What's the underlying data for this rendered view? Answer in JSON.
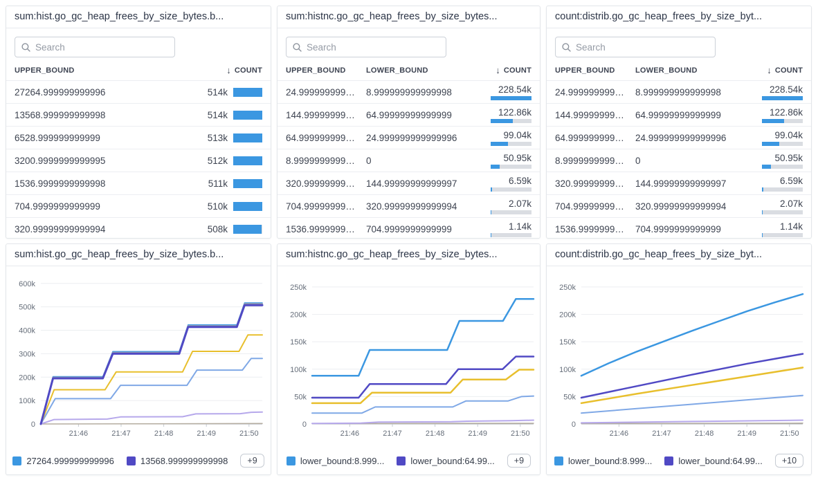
{
  "search_placeholder": "Search",
  "sort_arrow": "↓",
  "colors": {
    "bar_fill": "#3b97e1",
    "bar_track": "#dadde2",
    "blue": "#3b97e1",
    "indigo": "#5049c4",
    "yellow": "#e8bf2d",
    "steel_blue": "#7fa8e6",
    "lavender": "#b6a8eb",
    "gray": "#99a1ad",
    "tan": "#b5ada0",
    "grid": "#eceef1",
    "baseline": "#a9afb8",
    "axis_text": "#656d79"
  },
  "tables": [
    {
      "title": "sum:hist.go_gc_heap_frees_by_size_bytes.b...",
      "columns": [
        "UPPER_BOUND",
        "COUNT"
      ],
      "rows": [
        {
          "upper_bound": "27264.999999999996",
          "count": "514k",
          "fill": 100
        },
        {
          "upper_bound": "13568.999999999998",
          "count": "514k",
          "fill": 100
        },
        {
          "upper_bound": "6528.999999999999",
          "count": "513k",
          "fill": 99.8
        },
        {
          "upper_bound": "3200.9999999999995",
          "count": "512k",
          "fill": 99.6
        },
        {
          "upper_bound": "1536.9999999999998",
          "count": "511k",
          "fill": 99.4
        },
        {
          "upper_bound": "704.9999999999999",
          "count": "510k",
          "fill": 99.2
        },
        {
          "upper_bound": "320.99999999999994",
          "count": "508k",
          "fill": 98.8
        }
      ]
    },
    {
      "title": "sum:histnc.go_gc_heap_frees_by_size_bytes...",
      "columns": [
        "UPPER_BOUND",
        "LOWER_BOUND",
        "COUNT"
      ],
      "rows": [
        {
          "upper_bound": "24.999999999999996",
          "lower_bound": "8.999999999999998",
          "count": "228.54k",
          "fill": 100
        },
        {
          "upper_bound": "144.99999999999997",
          "lower_bound": "64.99999999999999",
          "count": "122.86k",
          "fill": 54
        },
        {
          "upper_bound": "64.99999999999999",
          "lower_bound": "24.999999999999996",
          "count": "99.04k",
          "fill": 43
        },
        {
          "upper_bound": "8.999999999999998",
          "lower_bound": "0",
          "count": "50.95k",
          "fill": 22
        },
        {
          "upper_bound": "320.99999999999994",
          "lower_bound": "144.99999999999997",
          "count": "6.59k",
          "fill": 3
        },
        {
          "upper_bound": "704.9999999999999",
          "lower_bound": "320.99999999999994",
          "count": "2.07k",
          "fill": 1.2
        },
        {
          "upper_bound": "1536.9999999999998",
          "lower_bound": "704.9999999999999",
          "count": "1.14k",
          "fill": 0.7
        }
      ]
    },
    {
      "title": "count:distrib.go_gc_heap_frees_by_size_byt...",
      "columns": [
        "UPPER_BOUND",
        "LOWER_BOUND",
        "COUNT"
      ],
      "rows": [
        {
          "upper_bound": "24.999999999999996",
          "lower_bound": "8.999999999999998",
          "count": "228.54k",
          "fill": 100
        },
        {
          "upper_bound": "144.99999999999997",
          "lower_bound": "64.99999999999999",
          "count": "122.86k",
          "fill": 54
        },
        {
          "upper_bound": "64.99999999999999",
          "lower_bound": "24.999999999999996",
          "count": "99.04k",
          "fill": 43
        },
        {
          "upper_bound": "8.999999999999998",
          "lower_bound": "0",
          "count": "50.95k",
          "fill": 22
        },
        {
          "upper_bound": "320.99999999999994",
          "lower_bound": "144.99999999999997",
          "count": "6.59k",
          "fill": 3
        },
        {
          "upper_bound": "704.9999999999999",
          "lower_bound": "320.99999999999994",
          "count": "2.07k",
          "fill": 1.2
        },
        {
          "upper_bound": "1536.9999999999998",
          "lower_bound": "704.9999999999999",
          "count": "1.14k",
          "fill": 0.7
        }
      ]
    }
  ],
  "chart_data": [
    {
      "type": "line",
      "title": "sum:hist.go_gc_heap_frees_by_size_bytes.b...",
      "xlabel": "",
      "ylabel": "",
      "x_ticks": [
        "21:46",
        "21:47",
        "21:48",
        "21:49",
        "21:50"
      ],
      "x_tick_pos": [
        0.17,
        0.3625,
        0.555,
        0.7475,
        0.94
      ],
      "y_tick_vals": [
        0,
        100,
        200,
        300,
        400,
        500,
        600
      ],
      "y_tick_labels": [
        "0",
        "100k",
        "200k",
        "300k",
        "400k",
        "500k",
        "600k"
      ],
      "y_unit": "k",
      "ylim": [
        0,
        620
      ],
      "grid": "horizontal",
      "legend_position": "bottom",
      "legend": [
        {
          "label": "27264.999999999996",
          "color": "#3b97e1"
        },
        {
          "label": "13568.999999999998",
          "color": "#5049c4"
        }
      ],
      "legend_more": "+9",
      "series": [
        {
          "name": "series-baseline",
          "color": "#b5ada0",
          "width": 1.5,
          "points": [
            [
              0,
              0
            ],
            [
              1,
              2
            ]
          ]
        },
        {
          "name": "series-lavender",
          "color": "#b6a8eb",
          "width": 2,
          "points": [
            [
              0,
              0
            ],
            [
              0.06,
              19
            ],
            [
              0.3,
              21
            ],
            [
              0.36,
              30
            ],
            [
              0.64,
              31
            ],
            [
              0.7,
              43
            ],
            [
              0.9,
              44
            ],
            [
              0.95,
              50
            ],
            [
              1,
              51
            ]
          ]
        },
        {
          "name": "series-light-blue",
          "color": "#7fa8e6",
          "width": 2,
          "points": [
            [
              0,
              0
            ],
            [
              0.065,
              108
            ],
            [
              0.315,
              108
            ],
            [
              0.36,
              165
            ],
            [
              0.66,
              165
            ],
            [
              0.705,
              230
            ],
            [
              0.91,
              230
            ],
            [
              0.95,
              280
            ],
            [
              1,
              280
            ]
          ]
        },
        {
          "name": "series-yellow",
          "color": "#e8bf2d",
          "width": 2,
          "points": [
            [
              0,
              0
            ],
            [
              0.06,
              146
            ],
            [
              0.29,
              146
            ],
            [
              0.34,
              222
            ],
            [
              0.64,
              222
            ],
            [
              0.685,
              310
            ],
            [
              0.895,
              310
            ],
            [
              0.935,
              380
            ],
            [
              1,
              380
            ]
          ]
        },
        {
          "name": "27264.999999999996",
          "color": "#3b97e1",
          "width": 1.6,
          "points": [
            [
              0,
              0
            ],
            [
              0.055,
              202
            ],
            [
              0.28,
              202
            ],
            [
              0.325,
              309
            ],
            [
              0.625,
              309
            ],
            [
              0.665,
              423
            ],
            [
              0.885,
              423
            ],
            [
              0.92,
              517
            ],
            [
              1,
              517
            ]
          ]
        },
        {
          "name": "series-gray",
          "color": "#99a1ad",
          "width": 2,
          "points": [
            [
              0,
              0
            ],
            [
              0.055,
              199
            ],
            [
              0.28,
              199
            ],
            [
              0.325,
              305
            ],
            [
              0.625,
              305
            ],
            [
              0.665,
              419
            ],
            [
              0.885,
              419
            ],
            [
              0.92,
              513
            ],
            [
              1,
              513
            ]
          ]
        },
        {
          "name": "13568.999999999998",
          "color": "#5049c4",
          "width": 3,
          "points": [
            [
              0,
              0
            ],
            [
              0.055,
              195
            ],
            [
              0.28,
              195
            ],
            [
              0.325,
              300
            ],
            [
              0.625,
              300
            ],
            [
              0.665,
              414
            ],
            [
              0.885,
              414
            ],
            [
              0.92,
              507
            ],
            [
              1,
              507
            ]
          ]
        }
      ]
    },
    {
      "type": "line",
      "title": "sum:histnc.go_gc_heap_frees_by_size_bytes...",
      "xlabel": "",
      "ylabel": "",
      "x_ticks": [
        "21:46",
        "21:47",
        "21:48",
        "21:49",
        "21:50"
      ],
      "x_tick_pos": [
        0.17,
        0.3625,
        0.555,
        0.7475,
        0.94
      ],
      "y_tick_vals": [
        0,
        50,
        100,
        150,
        200,
        250
      ],
      "y_tick_labels": [
        "0",
        "50k",
        "100k",
        "150k",
        "200k",
        "250k"
      ],
      "y_unit": "k",
      "ylim": [
        0,
        265
      ],
      "grid": "horizontal",
      "legend_position": "bottom",
      "legend": [
        {
          "label": "lower_bound:8.999...",
          "color": "#3b97e1"
        },
        {
          "label": "lower_bound:64.99...",
          "color": "#5049c4"
        }
      ],
      "legend_more": "+9",
      "series": [
        {
          "name": "series-baseline",
          "color": "#b5ada0",
          "width": 1.5,
          "points": [
            [
              0,
              0.7
            ],
            [
              1,
              1.3
            ]
          ]
        },
        {
          "name": "series-lavender",
          "color": "#b6a8eb",
          "width": 2,
          "points": [
            [
              0,
              1
            ],
            [
              0.22,
              1.5
            ],
            [
              0.3,
              3.5
            ],
            [
              0.63,
              4
            ],
            [
              0.7,
              5
            ],
            [
              0.9,
              6
            ],
            [
              1,
              7
            ]
          ]
        },
        {
          "name": "series-light-blue",
          "color": "#7fa8e6",
          "width": 2,
          "points": [
            [
              0,
              20
            ],
            [
              0.225,
              20
            ],
            [
              0.285,
              31
            ],
            [
              0.635,
              31
            ],
            [
              0.695,
              42
            ],
            [
              0.885,
              42
            ],
            [
              0.945,
              50
            ],
            [
              1,
              51
            ]
          ]
        },
        {
          "name": "series-yellow",
          "color": "#e8bf2d",
          "width": 2.5,
          "points": [
            [
              0,
              38
            ],
            [
              0.218,
              38
            ],
            [
              0.27,
              57
            ],
            [
              0.625,
              57
            ],
            [
              0.68,
              81
            ],
            [
              0.875,
              81
            ],
            [
              0.935,
              99
            ],
            [
              1,
              99
            ]
          ]
        },
        {
          "name": "lower_bound:64.99...",
          "color": "#5049c4",
          "width": 2.5,
          "points": [
            [
              0,
              48
            ],
            [
              0.21,
              48
            ],
            [
              0.26,
              73
            ],
            [
              0.605,
              73
            ],
            [
              0.66,
              100
            ],
            [
              0.86,
              100
            ],
            [
              0.92,
              123
            ],
            [
              1,
              123
            ]
          ]
        },
        {
          "name": "lower_bound:8.999...",
          "color": "#3b97e1",
          "width": 2.5,
          "points": [
            [
              0,
              88
            ],
            [
              0.21,
              88
            ],
            [
              0.26,
              135
            ],
            [
              0.61,
              135
            ],
            [
              0.665,
              188
            ],
            [
              0.862,
              188
            ],
            [
              0.92,
              228
            ],
            [
              1,
              228
            ]
          ]
        }
      ]
    },
    {
      "type": "line",
      "title": "count:distrib.go_gc_heap_frees_by_size_byt...",
      "xlabel": "",
      "ylabel": "",
      "x_ticks": [
        "21:46",
        "21:47",
        "21:48",
        "21:49",
        "21:50"
      ],
      "x_tick_pos": [
        0.17,
        0.3625,
        0.555,
        0.7475,
        0.94
      ],
      "y_tick_vals": [
        0,
        50,
        100,
        150,
        200,
        250
      ],
      "y_tick_labels": [
        "0",
        "50k",
        "100k",
        "150k",
        "200k",
        "250k"
      ],
      "y_unit": "k",
      "ylim": [
        0,
        265
      ],
      "grid": "horizontal",
      "legend_position": "bottom",
      "legend": [
        {
          "label": "lower_bound:8.999...",
          "color": "#3b97e1"
        },
        {
          "label": "lower_bound:64.99...",
          "color": "#5049c4"
        }
      ],
      "legend_more": "+10",
      "series": [
        {
          "name": "series-baseline",
          "color": "#b5ada0",
          "width": 1.5,
          "points": [
            [
              0,
              0.8
            ],
            [
              1,
              1.5
            ]
          ]
        },
        {
          "name": "series-lavender",
          "color": "#b6a8eb",
          "width": 2,
          "points": [
            [
              0,
              2
            ],
            [
              0.5,
              4.5
            ],
            [
              1,
              7
            ]
          ]
        },
        {
          "name": "series-light-blue",
          "color": "#7fa8e6",
          "width": 2,
          "points": [
            [
              0,
              20
            ],
            [
              0.25,
              28
            ],
            [
              0.5,
              36
            ],
            [
              0.75,
              44
            ],
            [
              1,
              52
            ]
          ]
        },
        {
          "name": "series-yellow",
          "color": "#e8bf2d",
          "width": 2.5,
          "points": [
            [
              0,
              38
            ],
            [
              0.25,
              55
            ],
            [
              0.5,
              71
            ],
            [
              0.75,
              87
            ],
            [
              1,
              103
            ]
          ]
        },
        {
          "name": "lower_bound:64.99...",
          "color": "#5049c4",
          "width": 2.5,
          "points": [
            [
              0,
              48
            ],
            [
              0.25,
              69
            ],
            [
              0.5,
              90
            ],
            [
              0.75,
              110
            ],
            [
              1,
              128
            ]
          ]
        },
        {
          "name": "lower_bound:8.999...",
          "color": "#3b97e1",
          "width": 2.5,
          "points": [
            [
              0,
              88
            ],
            [
              0.125,
              111
            ],
            [
              0.25,
              132
            ],
            [
              0.375,
              151
            ],
            [
              0.5,
              170
            ],
            [
              0.625,
              188
            ],
            [
              0.75,
              206
            ],
            [
              0.875,
              222
            ],
            [
              1,
              237
            ]
          ]
        }
      ]
    }
  ]
}
